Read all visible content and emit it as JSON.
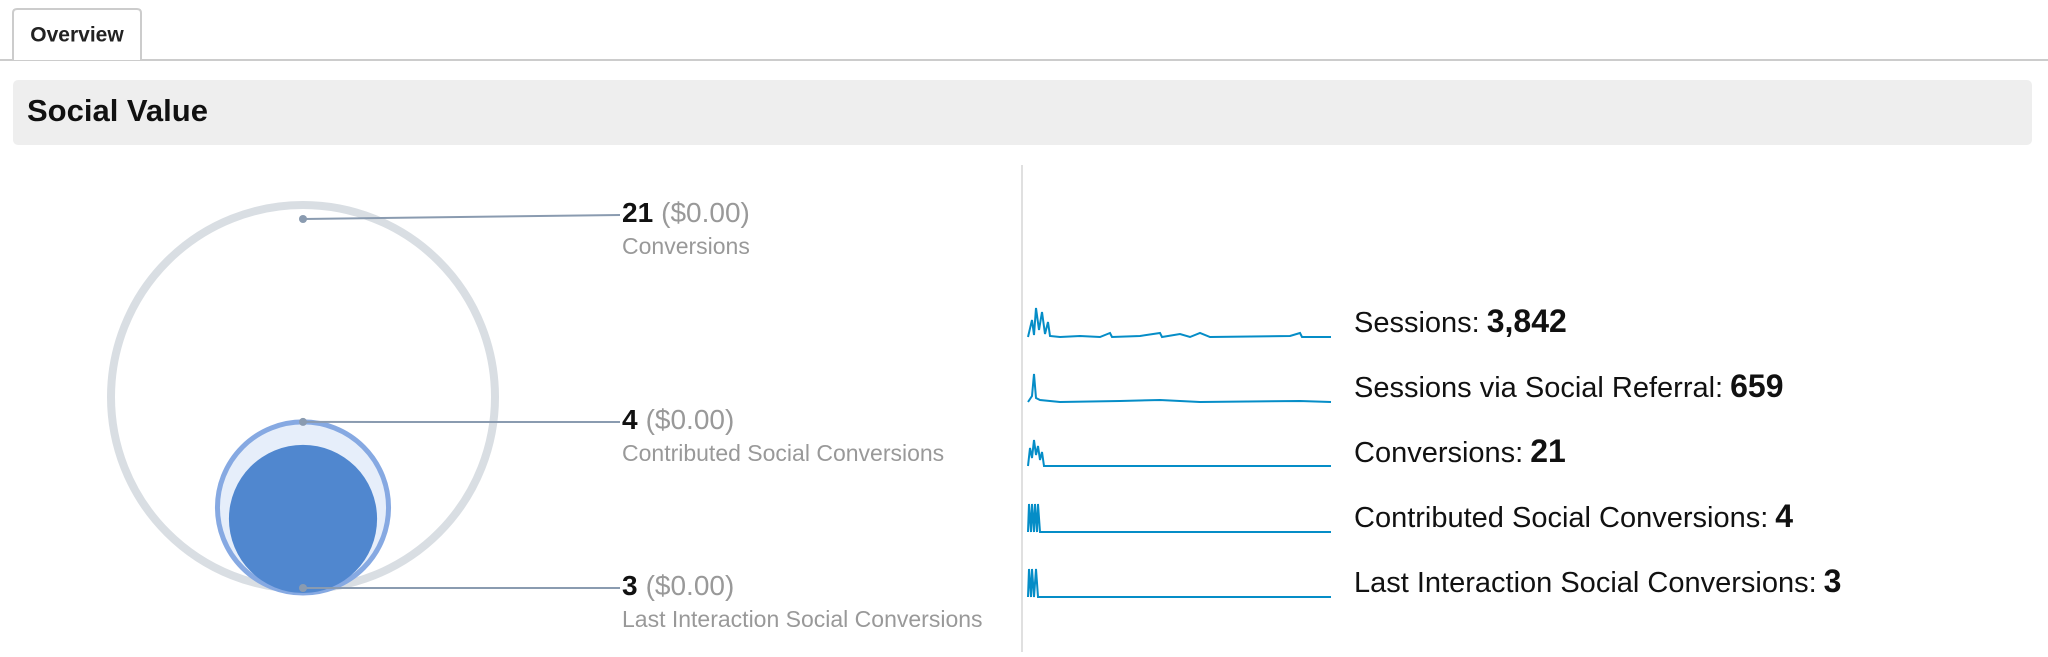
{
  "tab": "Overview",
  "title": "Social Value",
  "funnel": [
    {
      "value": 21,
      "money": "($0.00)",
      "label": "Conversions"
    },
    {
      "value": 4,
      "money": "($0.00)",
      "label": "Contributed Social Conversions"
    },
    {
      "value": 3,
      "money": "($0.00)",
      "label": "Last Interaction Social Conversions"
    }
  ],
  "metrics": [
    {
      "label": "Sessions:",
      "value": "3,842"
    },
    {
      "label": "Sessions via Social Referral:",
      "value": "659"
    },
    {
      "label": "Conversions:",
      "value": "21"
    },
    {
      "label": "Contributed Social Conversions:",
      "value": "4"
    },
    {
      "label": "Last Interaction Social Conversions:",
      "value": "3"
    }
  ]
}
